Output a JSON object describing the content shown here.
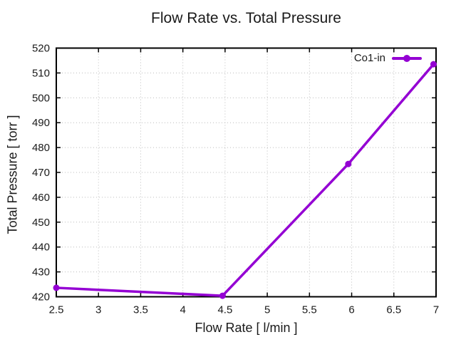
{
  "title": "Flow Rate vs. Total Pressure",
  "legend": {
    "entries": [
      {
        "label": "Co1-in"
      }
    ]
  },
  "colors": {
    "background": "#ffffff",
    "text": "#1a1a1a",
    "border": "#000000",
    "grid": "#bcbcbc",
    "accent": "#9400d3"
  },
  "chart_data": {
    "type": "line",
    "title": "Flow Rate vs. Total Pressure",
    "xlabel": "Flow Rate [ l/min ]",
    "ylabel": "Total Pressure [ torr ]",
    "xlim": [
      2.5,
      7
    ],
    "ylim": [
      420,
      520
    ],
    "x_ticks": [
      2.5,
      3,
      3.5,
      4,
      4.5,
      5,
      5.5,
      6,
      6.5,
      7
    ],
    "y_ticks": [
      420,
      430,
      440,
      450,
      460,
      470,
      480,
      490,
      500,
      510,
      520
    ],
    "grid": true,
    "grid_style": "dotted",
    "legend_position": "top-right-inside",
    "series": [
      {
        "name": "Co1-in",
        "color": "#9400d3",
        "marker": "filled-circle",
        "line_width": 3.5,
        "points": [
          [
            2.5,
            423.6
          ],
          [
            4.47,
            420.4
          ],
          [
            5.96,
            473.4
          ],
          [
            6.97,
            513.5
          ]
        ]
      }
    ]
  }
}
